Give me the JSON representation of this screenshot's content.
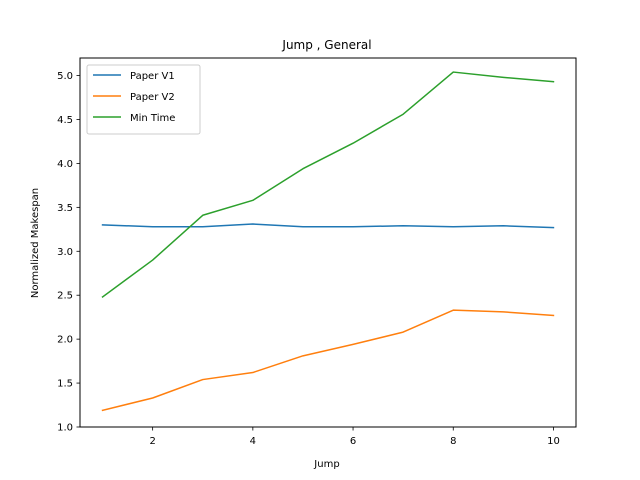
{
  "chart_data": {
    "type": "line",
    "title": "Jump , General",
    "xlabel": "Jump",
    "ylabel": "Normalized Makespan",
    "x": [
      1,
      2,
      3,
      4,
      5,
      6,
      7,
      8,
      9,
      10
    ],
    "xlim": [
      0.55,
      10.45
    ],
    "ylim": [
      1.0,
      5.2
    ],
    "xticks": [
      2,
      4,
      6,
      8,
      10
    ],
    "yticks": [
      1.0,
      1.5,
      2.0,
      2.5,
      3.0,
      3.5,
      4.0,
      4.5,
      5.0
    ],
    "xtick_labels": [
      "2",
      "4",
      "6",
      "8",
      "10"
    ],
    "ytick_labels": [
      "1.0",
      "1.5",
      "2.0",
      "2.5",
      "3.0",
      "3.5",
      "4.0",
      "4.5",
      "5.0"
    ],
    "grid": false,
    "legend_position": "upper-left",
    "series": [
      {
        "name": "Paper V1",
        "color": "#1f77b4",
        "values": [
          3.3,
          3.28,
          3.28,
          3.31,
          3.28,
          3.28,
          3.29,
          3.28,
          3.29,
          3.27
        ]
      },
      {
        "name": "Paper V2",
        "color": "#ff7f0e",
        "values": [
          1.19,
          1.33,
          1.54,
          1.62,
          1.81,
          1.94,
          2.08,
          2.33,
          2.31,
          2.27
        ]
      },
      {
        "name": "Min Time",
        "color": "#2ca02c",
        "values": [
          2.48,
          2.9,
          3.41,
          3.58,
          3.94,
          4.23,
          4.56,
          5.04,
          4.98,
          4.93
        ]
      }
    ]
  }
}
